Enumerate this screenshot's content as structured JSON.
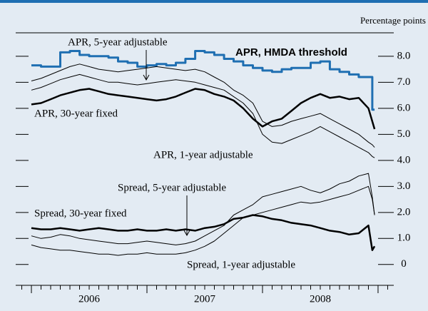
{
  "chart_data": {
    "type": "line",
    "ylabel": "Percentage points",
    "x": [
      2006.0,
      2006.083,
      2006.167,
      2006.25,
      2006.333,
      2006.417,
      2006.5,
      2006.583,
      2006.667,
      2006.75,
      2006.833,
      2006.917,
      2007.0,
      2007.083,
      2007.167,
      2007.25,
      2007.333,
      2007.417,
      2007.5,
      2007.583,
      2007.667,
      2007.75,
      2007.833,
      2007.917,
      2008.0,
      2008.083,
      2008.167,
      2008.25,
      2008.333,
      2008.417,
      2008.5,
      2008.583,
      2008.667,
      2008.75,
      2008.833,
      2008.917,
      2008.95,
      2008.97
    ],
    "xlim": [
      2005.864,
      2009.136
    ],
    "xticks": [
      {
        "value": 2006.5,
        "label": "2006"
      },
      {
        "value": 2007.5,
        "label": "2007"
      },
      {
        "value": 2008.5,
        "label": "2008"
      }
    ],
    "ylim": [
      -0.8,
      8.9
    ],
    "yticks": [
      0,
      {
        "value": 1,
        "label": "1.0"
      },
      {
        "value": 2,
        "label": "2.0"
      },
      {
        "value": 3,
        "label": "3.0"
      },
      {
        "value": 4,
        "label": "4.0"
      },
      {
        "value": 5,
        "label": "5.0"
      },
      {
        "value": 6,
        "label": "6.0"
      },
      {
        "value": 7,
        "label": "7.0"
      },
      {
        "value": 8,
        "label": "8.0"
      }
    ],
    "series": [
      {
        "name": "APR, HMDA threshold",
        "color": "#1f6fb2",
        "width": 3,
        "step": true,
        "values": [
          7.65,
          7.6,
          7.6,
          8.15,
          8.2,
          8.05,
          8.0,
          8.0,
          7.95,
          7.8,
          7.75,
          7.6,
          7.65,
          7.7,
          7.65,
          7.75,
          7.9,
          8.2,
          8.15,
          8.05,
          7.9,
          7.8,
          7.65,
          7.55,
          7.45,
          7.4,
          7.5,
          7.55,
          7.55,
          7.75,
          7.8,
          7.5,
          7.4,
          7.3,
          7.2,
          7.2,
          5.95,
          5.95
        ]
      },
      {
        "name": "APR, 5-year adjustable",
        "color": "#000000",
        "width": 1,
        "values": [
          7.05,
          7.15,
          7.3,
          7.45,
          7.6,
          7.7,
          7.6,
          7.5,
          7.45,
          7.4,
          7.45,
          7.5,
          7.55,
          7.6,
          7.55,
          7.5,
          7.45,
          7.5,
          7.4,
          7.2,
          7.0,
          6.7,
          6.5,
          6.2,
          5.5,
          5.3,
          5.35,
          5.5,
          5.6,
          5.7,
          5.8,
          5.6,
          5.4,
          5.2,
          5.0,
          4.7,
          4.6,
          4.5
        ]
      },
      {
        "name": "APR, 30-year fixed",
        "color": "#000000",
        "width": 2.5,
        "values": [
          6.15,
          6.2,
          6.35,
          6.5,
          6.6,
          6.7,
          6.75,
          6.65,
          6.55,
          6.5,
          6.45,
          6.4,
          6.35,
          6.3,
          6.35,
          6.45,
          6.6,
          6.75,
          6.7,
          6.55,
          6.45,
          6.3,
          6.0,
          5.6,
          5.3,
          5.5,
          5.6,
          5.9,
          6.2,
          6.4,
          6.55,
          6.4,
          6.45,
          6.35,
          6.4,
          6.0,
          5.5,
          5.2
        ]
      },
      {
        "name": "APR, 1-year adjustable",
        "color": "#000000",
        "width": 1,
        "values": [
          6.7,
          6.8,
          6.95,
          7.1,
          7.2,
          7.3,
          7.2,
          7.1,
          7.0,
          7.0,
          6.95,
          6.9,
          6.95,
          7.0,
          7.05,
          7.1,
          7.05,
          7.0,
          6.9,
          6.8,
          6.7,
          6.45,
          6.2,
          5.8,
          5.0,
          4.7,
          4.65,
          4.8,
          4.95,
          5.1,
          5.3,
          5.1,
          4.9,
          4.7,
          4.5,
          4.3,
          4.15,
          4.1
        ]
      },
      {
        "name": "Spread, 5-year adjustable",
        "color": "#000000",
        "width": 1,
        "values": [
          1.1,
          1.0,
          1.05,
          1.15,
          1.1,
          1.0,
          0.95,
          0.9,
          0.85,
          0.8,
          0.8,
          0.85,
          0.9,
          0.85,
          0.8,
          0.75,
          0.8,
          0.9,
          1.1,
          1.3,
          1.5,
          1.9,
          2.1,
          2.3,
          2.6,
          2.7,
          2.8,
          2.9,
          3.0,
          2.85,
          2.75,
          2.9,
          3.1,
          3.2,
          3.4,
          3.5,
          2.6,
          1.9
        ]
      },
      {
        "name": "Spread, 30-year fixed",
        "color": "#000000",
        "width": 2.5,
        "values": [
          1.4,
          1.35,
          1.35,
          1.4,
          1.35,
          1.3,
          1.35,
          1.4,
          1.35,
          1.3,
          1.3,
          1.35,
          1.3,
          1.3,
          1.35,
          1.3,
          1.35,
          1.3,
          1.4,
          1.45,
          1.55,
          1.75,
          1.8,
          1.9,
          1.85,
          1.75,
          1.7,
          1.6,
          1.55,
          1.5,
          1.4,
          1.3,
          1.25,
          1.15,
          1.2,
          1.5,
          0.55,
          0.7
        ]
      },
      {
        "name": "Spread, 1-year adjustable",
        "color": "#000000",
        "width": 1,
        "values": [
          0.75,
          0.65,
          0.6,
          0.55,
          0.55,
          0.5,
          0.45,
          0.4,
          0.4,
          0.35,
          0.4,
          0.4,
          0.45,
          0.4,
          0.4,
          0.4,
          0.45,
          0.55,
          0.7,
          0.9,
          1.2,
          1.5,
          1.8,
          1.9,
          2.0,
          2.1,
          2.2,
          2.3,
          2.4,
          2.35,
          2.4,
          2.5,
          2.6,
          2.7,
          2.85,
          3.0,
          2.5,
          1.9
        ]
      }
    ]
  }
}
